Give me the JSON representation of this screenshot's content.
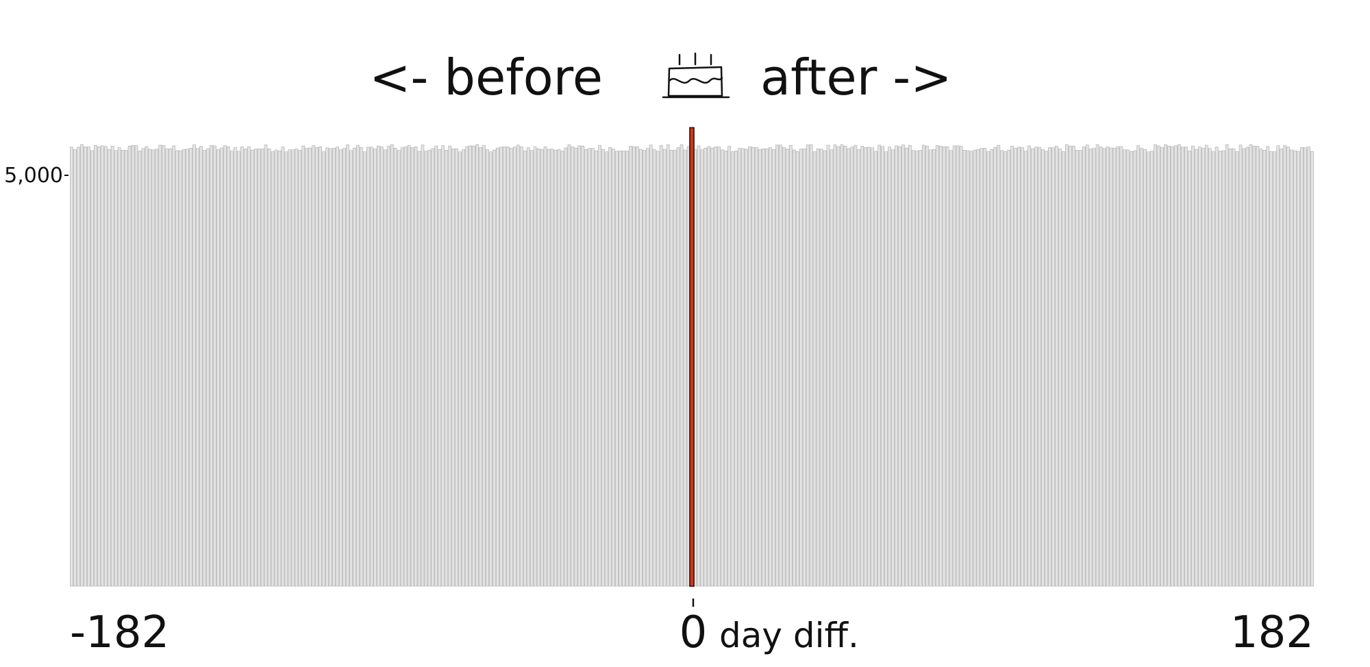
{
  "chart_data": {
    "type": "bar",
    "title_left": "<- before",
    "title_right": "after ->",
    "title_icon": "birthday-cake-icon",
    "xlabel": "day diff.",
    "x_range": [
      -182,
      182
    ],
    "x_ticks": [
      {
        "value": -182,
        "label": "-182"
      },
      {
        "value": 0,
        "label": "0"
      },
      {
        "value": 182,
        "label": "182"
      }
    ],
    "y_ticks": [
      {
        "value": 5000,
        "label": "5,000"
      }
    ],
    "ylim": [
      0,
      5550
    ],
    "baseline_count": 5330,
    "highlight_day": 0,
    "highlight_value": 5580,
    "colors": {
      "bar_fill": "#e3e3e3",
      "bar_stroke": "#a8a8a8",
      "highlight_fill": "#c83a1e",
      "highlight_stroke": "#2a0a05",
      "text": "#111111"
    }
  }
}
